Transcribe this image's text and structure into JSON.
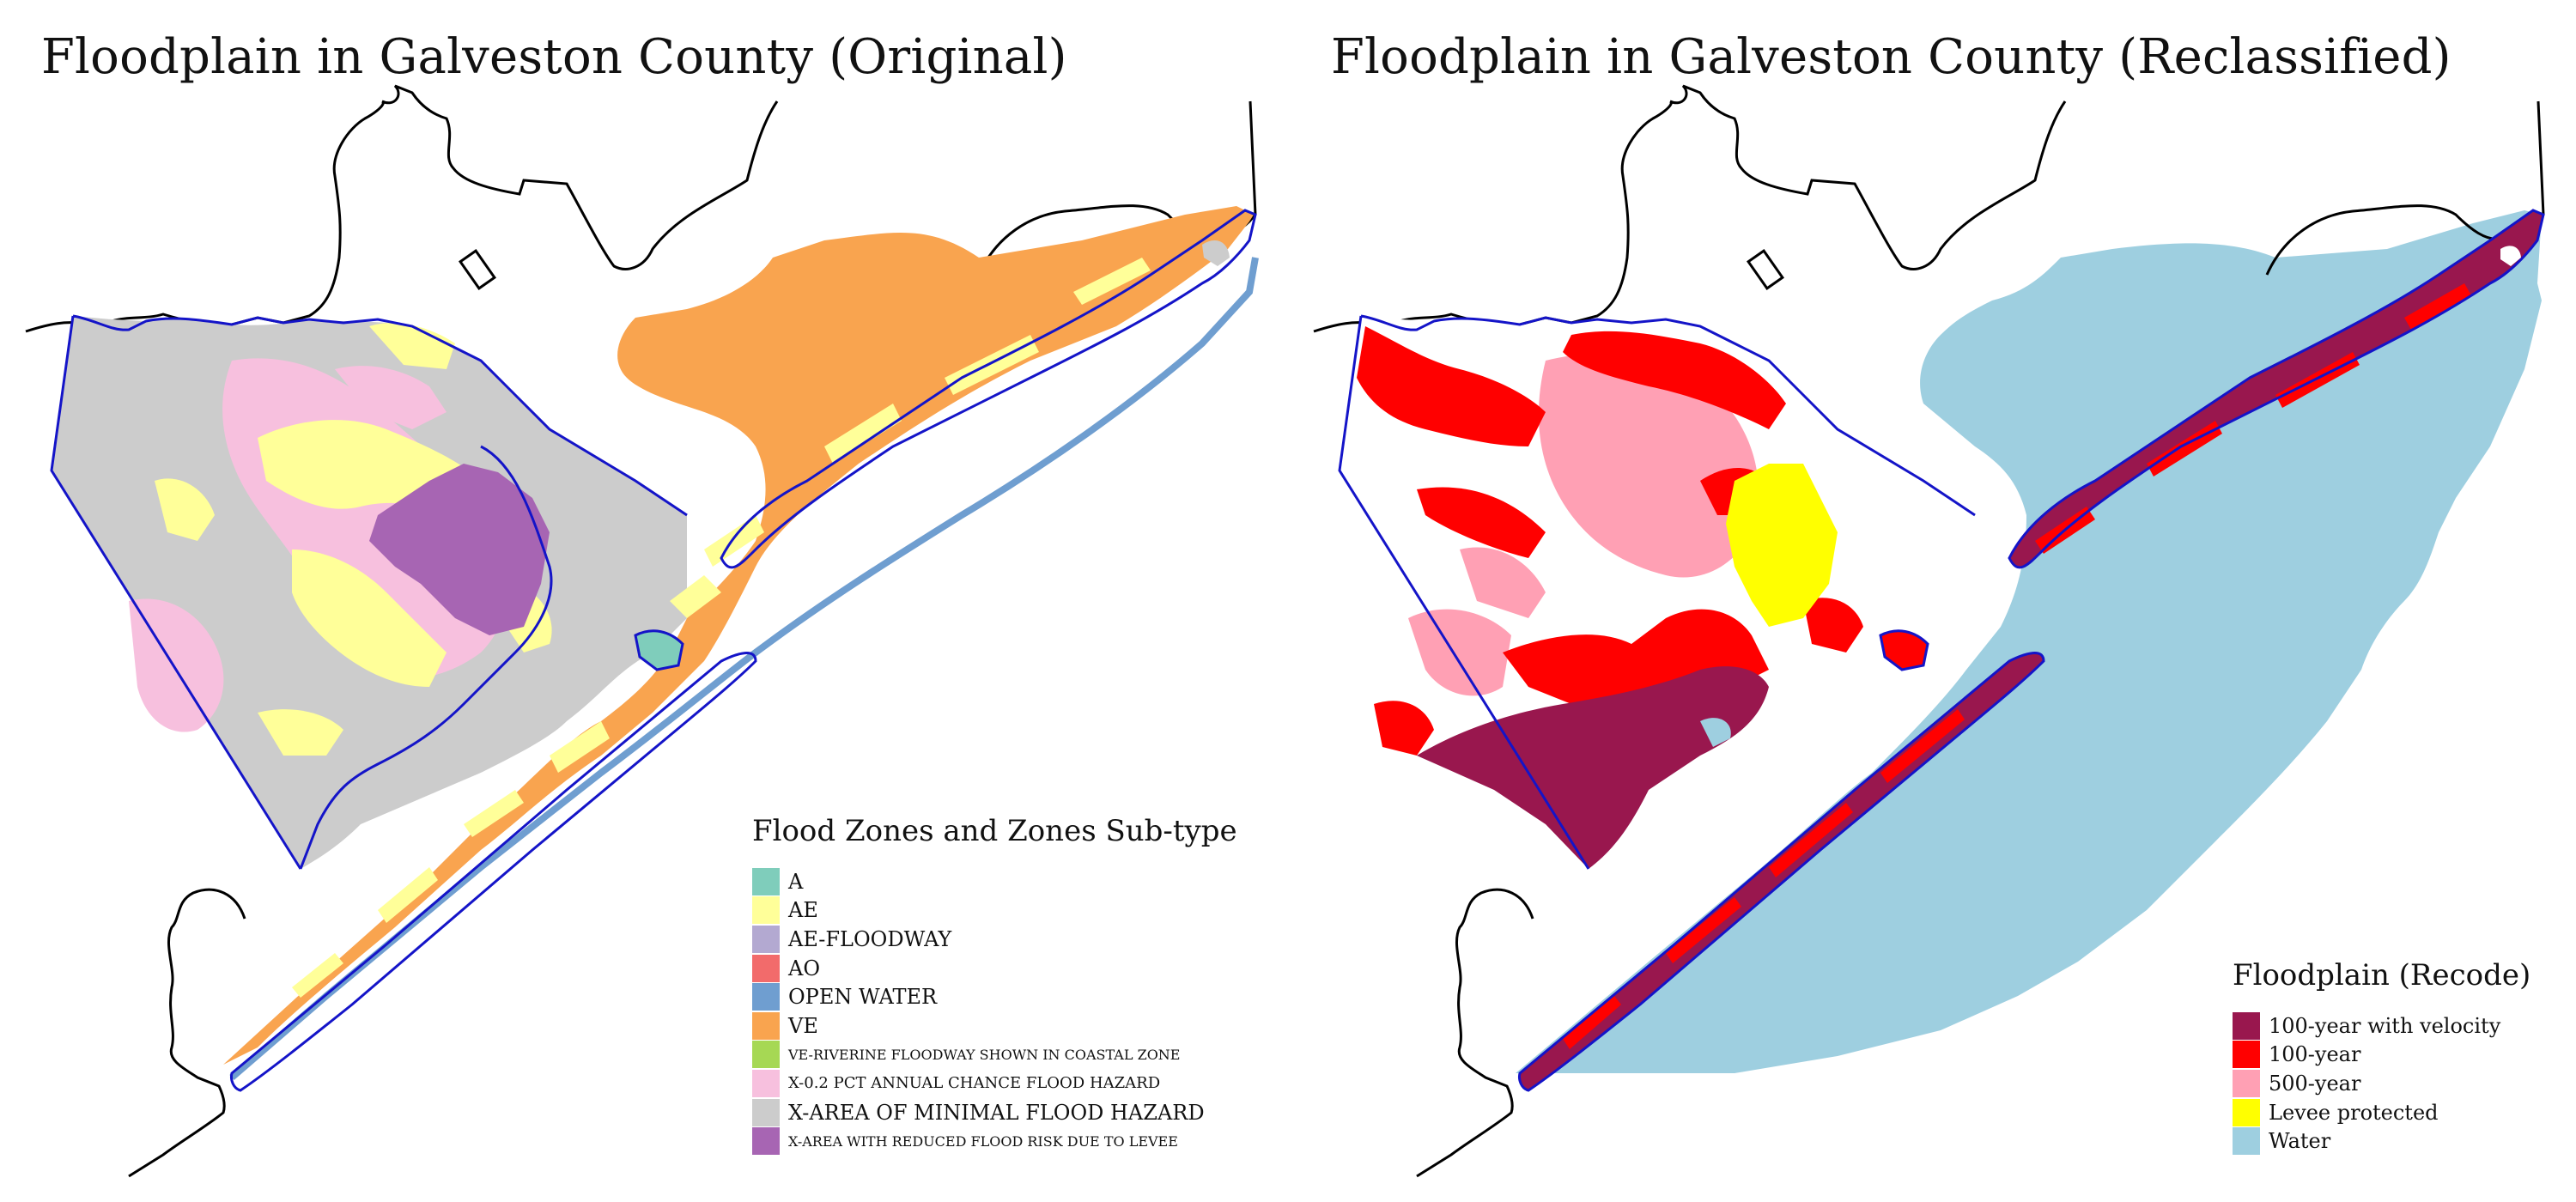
{
  "left": {
    "title": "Floodplain in Galveston County (Original)",
    "legend": {
      "title": "Flood Zones and Zones Sub-type",
      "items": [
        {
          "label": "A",
          "color": "#7fcdbb"
        },
        {
          "label": "AE",
          "color": "#ffff99"
        },
        {
          "label": "AE-FLOODWAY",
          "color": "#b3a9d1"
        },
        {
          "label": "AO",
          "color": "#f26b6b"
        },
        {
          "label": "OPEN WATER",
          "color": "#6f9ed0"
        },
        {
          "label": "VE",
          "color": "#f9a44f"
        },
        {
          "label": "VE-RIVERINE FLOODWAY SHOWN IN COASTAL ZONE",
          "color": "#a6d854"
        },
        {
          "label": "X-0.2 PCT ANNUAL CHANCE FLOOD HAZARD",
          "color": "#f7c0de"
        },
        {
          "label": "X-AREA OF MINIMAL FLOOD HAZARD",
          "color": "#cccccc"
        },
        {
          "label": "X-AREA WITH REDUCED FLOOD RISK DUE TO LEVEE",
          "color": "#a765b3"
        }
      ]
    }
  },
  "right": {
    "title": "Floodplain in Galveston County (Reclassified)",
    "legend": {
      "title": "Floodplain (Recode)",
      "items": [
        {
          "label": "100-year with velocity",
          "color": "#99174e"
        },
        {
          "label": "100-year",
          "color": "#ff0000"
        },
        {
          "label": "500-year",
          "color": "#ffa0b4"
        },
        {
          "label": "Levee protected",
          "color": "#ffff00"
        },
        {
          "label": "Water",
          "color": "#9ecfe0"
        }
      ]
    }
  },
  "colors": {
    "county_outline": "#1414c8",
    "coastline": "#000000"
  }
}
